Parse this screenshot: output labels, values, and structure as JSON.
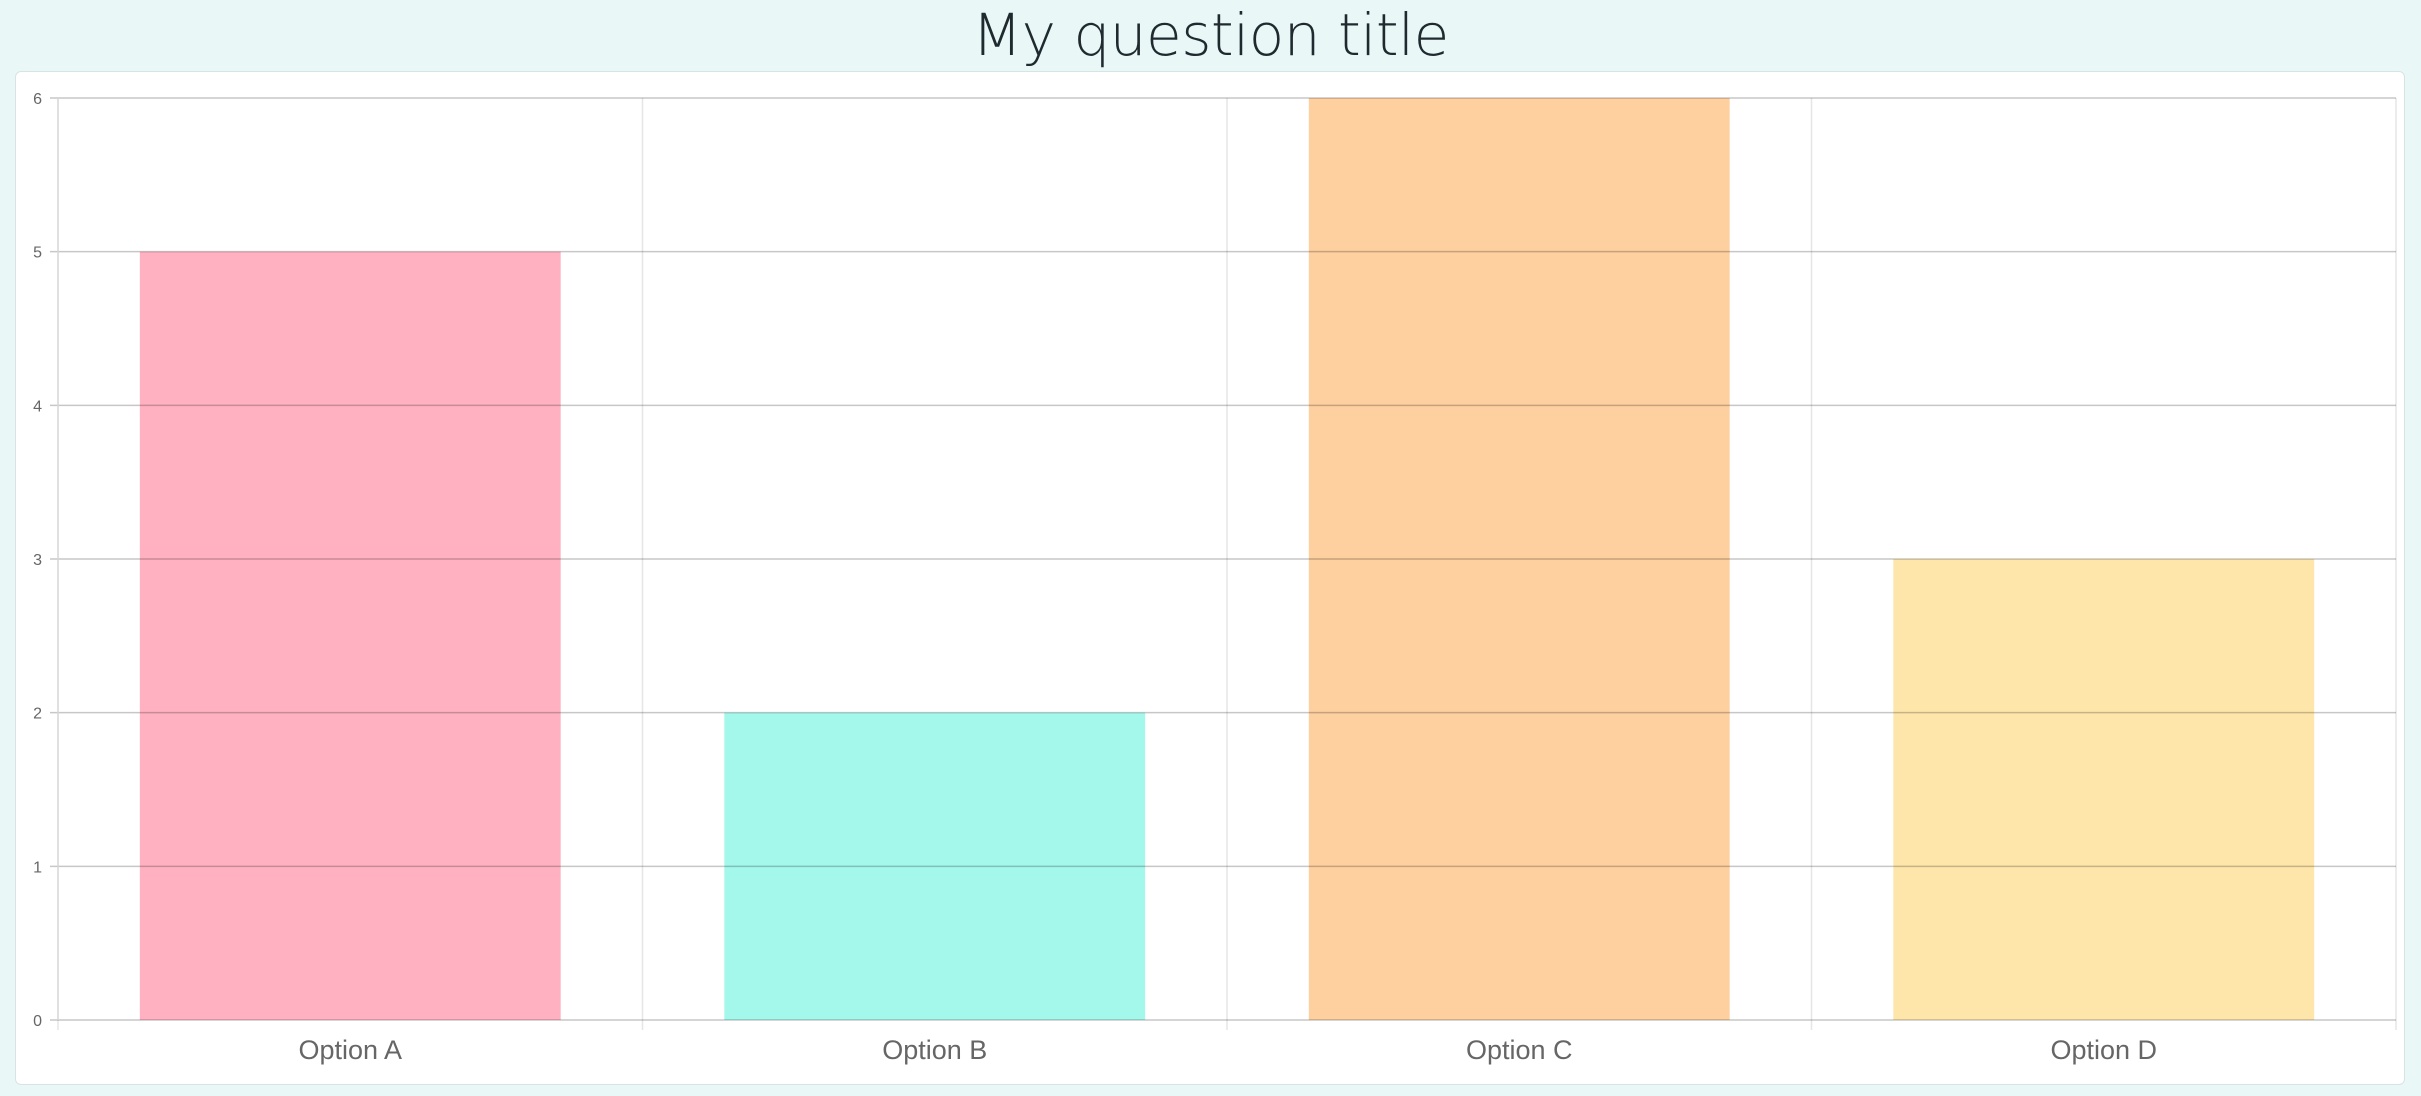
{
  "page": {
    "title": "My question title"
  },
  "chart_data": {
    "type": "bar",
    "categories": [
      "Option A",
      "Option B",
      "Option C",
      "Option D"
    ],
    "values": [
      5,
      2,
      6,
      3
    ],
    "colors": [
      "#ffb1c1",
      "#a3f7eb",
      "#fecf9f",
      "#fee5aa"
    ],
    "title": "My question title",
    "xlabel": "",
    "ylabel": "",
    "ylim": [
      0,
      6
    ],
    "yticks": [
      0,
      1,
      2,
      3,
      4,
      5,
      6
    ],
    "grid": true,
    "legend": "none"
  }
}
